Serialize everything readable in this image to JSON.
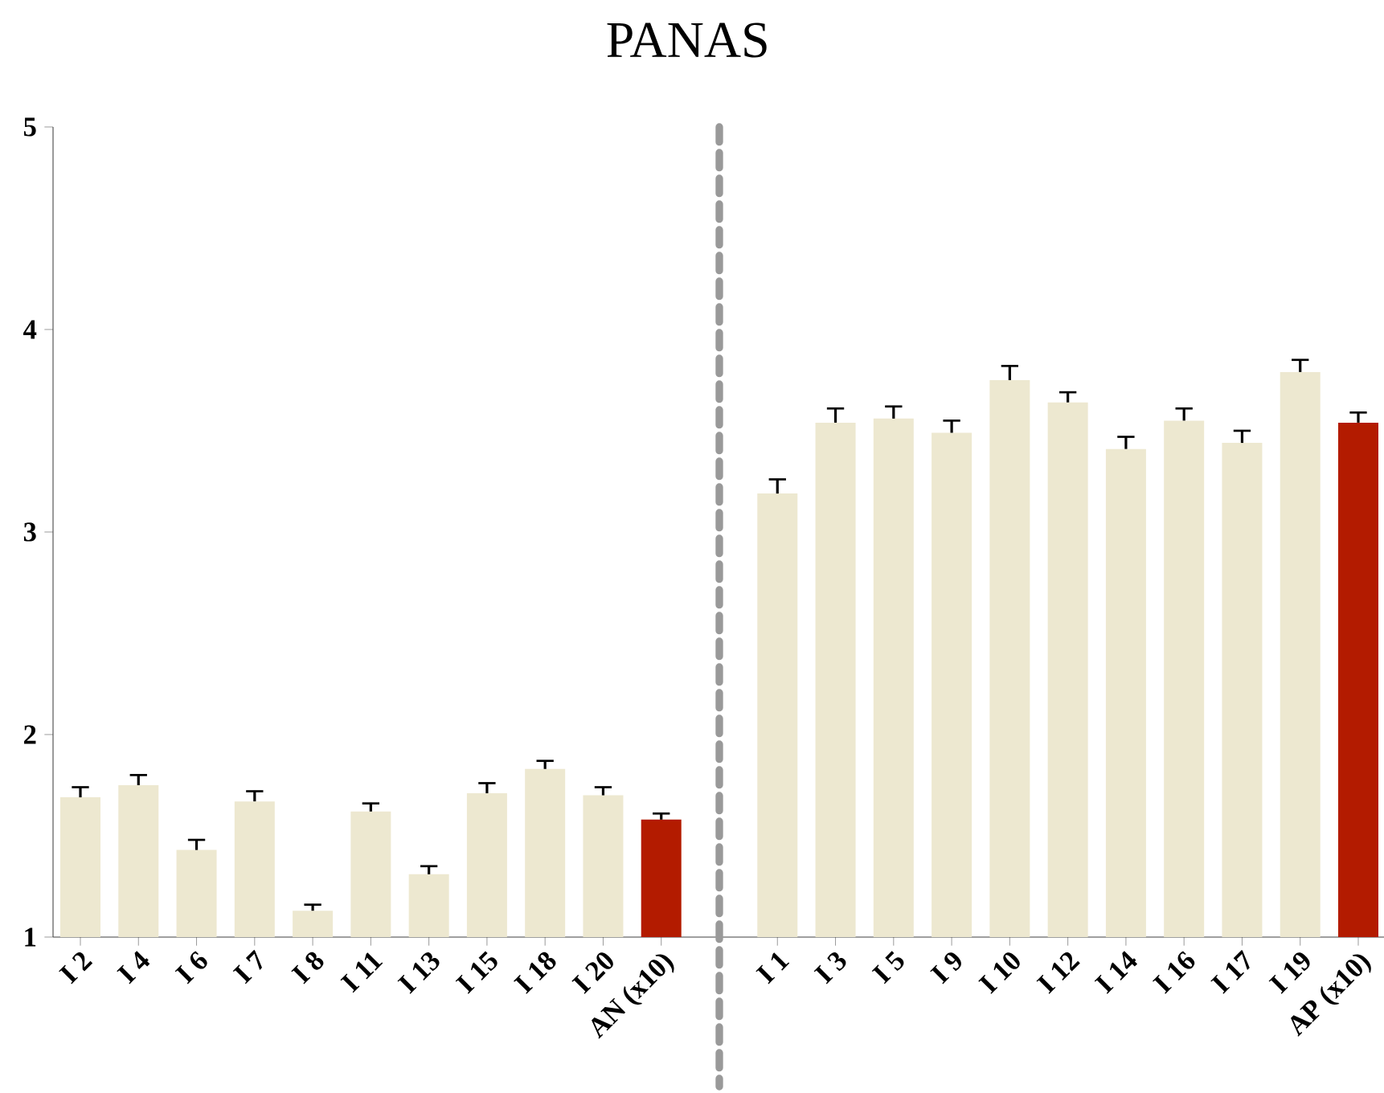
{
  "chart_data": {
    "type": "bar",
    "title": "PANAS",
    "categories": [
      "I 2",
      "I 4",
      "I 6",
      "I 7",
      "I 8",
      "I 11",
      "I 13",
      "I 15",
      "I 18",
      "I 20",
      "AN (x10)",
      null,
      "I 1",
      "I 3",
      "I 5",
      "I 9",
      "I 10",
      "I 12",
      "I 14",
      "I 16",
      "I 17",
      "I 19",
      "AP (x10)"
    ],
    "values": [
      1.69,
      1.75,
      1.43,
      1.67,
      1.13,
      1.62,
      1.31,
      1.71,
      1.83,
      1.7,
      1.58,
      null,
      3.19,
      3.54,
      3.56,
      3.49,
      3.75,
      3.64,
      3.41,
      3.55,
      3.44,
      3.79,
      3.54
    ],
    "errors": [
      [
        1.69,
        1.74
      ],
      [
        1.75,
        1.8
      ],
      [
        1.43,
        1.48
      ],
      [
        1.67,
        1.72
      ],
      [
        1.13,
        1.16
      ],
      [
        1.62,
        1.66
      ],
      [
        1.31,
        1.35
      ],
      [
        1.71,
        1.76
      ],
      [
        1.83,
        1.87
      ],
      [
        1.7,
        1.74
      ],
      [
        1.58,
        1.61
      ],
      null,
      [
        3.19,
        3.26
      ],
      [
        3.54,
        3.61
      ],
      [
        3.56,
        3.62
      ],
      [
        3.49,
        3.55
      ],
      [
        3.75,
        3.82
      ],
      [
        3.64,
        3.69
      ],
      [
        3.41,
        3.47
      ],
      [
        3.55,
        3.61
      ],
      [
        3.44,
        3.5
      ],
      [
        3.79,
        3.85
      ],
      [
        3.54,
        3.59
      ]
    ],
    "colors": [
      "#ede8d0",
      "#ede8d0",
      "#ede8d0",
      "#ede8d0",
      "#ede8d0",
      "#ede8d0",
      "#ede8d0",
      "#ede8d0",
      "#ede8d0",
      "#ede8d0",
      "#b31b00",
      null,
      "#ede8d0",
      "#ede8d0",
      "#ede8d0",
      "#ede8d0",
      "#ede8d0",
      "#ede8d0",
      "#ede8d0",
      "#ede8d0",
      "#ede8d0",
      "#ede8d0",
      "#b31b00"
    ],
    "ylim": [
      1,
      5
    ],
    "yticks": [
      1,
      2,
      3,
      4,
      5
    ]
  }
}
